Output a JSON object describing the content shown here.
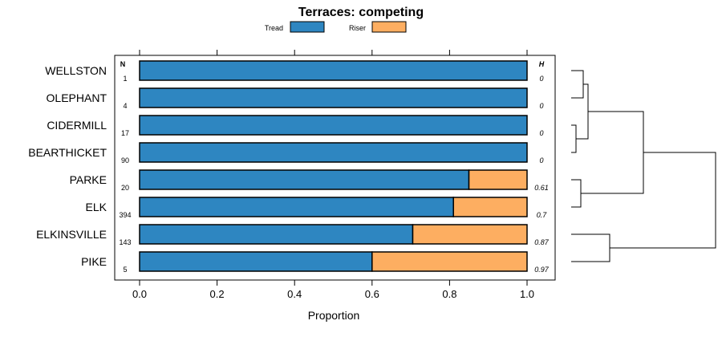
{
  "chart_data": {
    "type": "bar",
    "orientation": "horizontal",
    "stacked": true,
    "title": "Terraces: competing",
    "xlabel": "Proportion",
    "ylabel": "",
    "xlim": [
      0,
      1
    ],
    "x_ticks": [
      "0.0",
      "0.2",
      "0.4",
      "0.6",
      "0.8",
      "1.0"
    ],
    "x_tick_values": [
      0,
      0.2,
      0.4,
      0.6,
      0.8,
      1.0
    ],
    "legend": {
      "position": "top",
      "entries": [
        {
          "label": "Tread",
          "color": "#2e86c1"
        },
        {
          "label": "Riser",
          "color": "#fdae61"
        }
      ]
    },
    "n_header": "N",
    "h_header": "H",
    "categories": [
      "WELLSTON",
      "OLEPHANT",
      "CIDERMILL",
      "BEARTHICKET",
      "PARKE",
      "ELK",
      "ELKINSVILLE",
      "PIKE"
    ],
    "n_values": [
      "1",
      "4",
      "17",
      "90",
      "20",
      "394",
      "143",
      "5"
    ],
    "h_values": [
      "0",
      "0",
      "0",
      "0",
      "0.61",
      "0.7",
      "0.87",
      "0.97"
    ],
    "series": [
      {
        "name": "Tread",
        "values": [
          1.0,
          1.0,
          1.0,
          1.0,
          0.85,
          0.81,
          0.705,
          0.6
        ]
      },
      {
        "name": "Riser",
        "values": [
          0.0,
          0.0,
          0.0,
          0.0,
          0.15,
          0.19,
          0.295,
          0.4
        ]
      }
    ],
    "dendrogram": {
      "description": "hierarchical clustering of rows",
      "merges": [
        {
          "left": "WELLSTON",
          "right": "OLEPHANT",
          "height": 0.05
        },
        {
          "left": "CIDERMILL",
          "right": "BEARTHICKET",
          "height": 0.02
        },
        {
          "left": "m0",
          "right": "m1",
          "height": 0.07
        },
        {
          "left": "PARKE",
          "right": "ELK",
          "height": 0.04
        },
        {
          "left": "m2",
          "right": "m3",
          "height": 0.3
        },
        {
          "left": "ELKINSVILLE",
          "right": "PIKE",
          "height": 0.16
        },
        {
          "left": "m4",
          "right": "m5",
          "height": 0.6
        }
      ]
    }
  }
}
